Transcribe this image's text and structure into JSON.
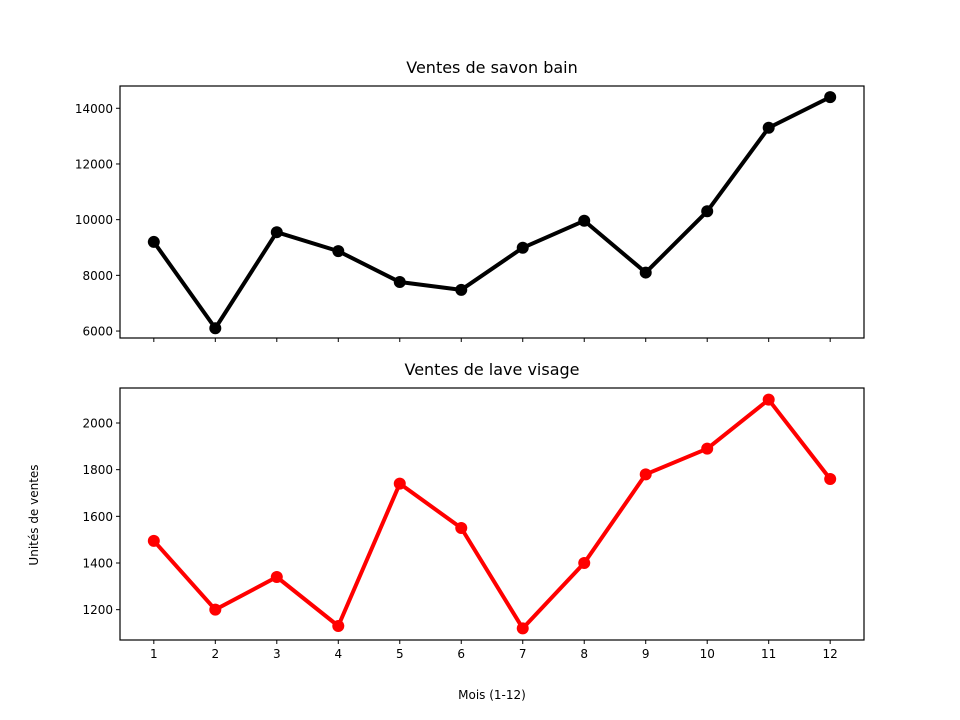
{
  "chart_data": [
    {
      "type": "line",
      "title": "Ventes de savon bain",
      "xlabel": "",
      "ylabel": "",
      "x": [
        1,
        2,
        3,
        4,
        5,
        6,
        7,
        8,
        9,
        10,
        11,
        12
      ],
      "series": [
        {
          "values": [
            9200,
            6100,
            9550,
            8870,
            7760,
            7480,
            8990,
            9960,
            8100,
            10300,
            13300,
            14400
          ],
          "color": "#000000"
        }
      ],
      "ylim": [
        5750,
        14800
      ],
      "yticks": [
        6000,
        8000,
        10000,
        12000,
        14000
      ],
      "yticklabels": [
        "6000",
        "8000",
        "10000",
        "12000",
        "14000"
      ],
      "xticklabels": [],
      "grid": false,
      "marker": "circle"
    },
    {
      "type": "line",
      "title": "Ventes de lave visage",
      "xlabel": "Mois (1-12)",
      "ylabel": "Unités de ventes",
      "x": [
        1,
        2,
        3,
        4,
        5,
        6,
        7,
        8,
        9,
        10,
        11,
        12
      ],
      "series": [
        {
          "values": [
            1495,
            1200,
            1340,
            1130,
            1740,
            1550,
            1120,
            1400,
            1780,
            1890,
            2100,
            1760
          ],
          "color": "#ff0000"
        }
      ],
      "ylim": [
        1070,
        2150
      ],
      "yticks": [
        1200,
        1400,
        1600,
        1800,
        2000
      ],
      "yticklabels": [
        "1200",
        "1400",
        "1600",
        "1800",
        "2000"
      ],
      "xticklabels": [
        "1",
        "2",
        "3",
        "4",
        "5",
        "6",
        "7",
        "8",
        "9",
        "10",
        "11",
        "12"
      ],
      "grid": false,
      "marker": "circle"
    }
  ]
}
